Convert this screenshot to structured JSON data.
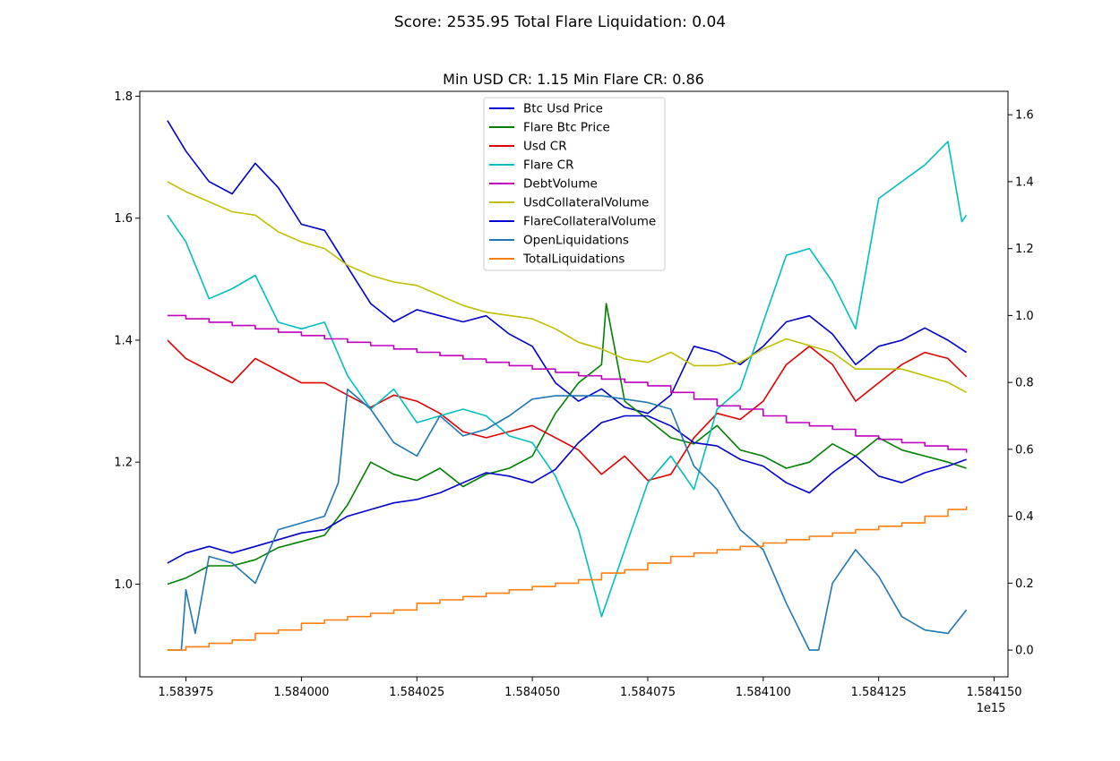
{
  "figure": {
    "suptitle": "Score: 2535.95 Total Flare Liquidation: 0.04",
    "axes_title": "Min USD CR: 1.15 Min Flare CR: 0.86"
  },
  "chart_data": {
    "type": "line",
    "title": "Min USD CR: 1.15 Min Flare CR: 0.86",
    "xlabel": "",
    "ylabel": "",
    "xlim": [
      1583965,
      1584153
    ],
    "x_offset_label": "1e15",
    "x_ticks": [
      1583975,
      1584000,
      1584025,
      1584050,
      1584075,
      1584100,
      1584125,
      1584150
    ],
    "x_tick_labels": [
      "1.583975",
      "1.584000",
      "1.584025",
      "1.584050",
      "1.584075",
      "1.584100",
      "1.584125",
      "1.584150"
    ],
    "ylim_left": [
      0.848,
      1.808
    ],
    "y_ticks_left": [
      1.0,
      1.2,
      1.4,
      1.6,
      1.8
    ],
    "y_tick_labels_left": [
      "1.0",
      "1.2",
      "1.4",
      "1.6",
      "1.8"
    ],
    "ylim_right": [
      -0.08,
      1.67
    ],
    "y_ticks_right": [
      0.0,
      0.2,
      0.4,
      0.6,
      0.8,
      1.0,
      1.2,
      1.4,
      1.6
    ],
    "y_tick_labels_right": [
      "0.0",
      "0.2",
      "0.4",
      "0.6",
      "0.8",
      "1.0",
      "1.2",
      "1.4",
      "1.6"
    ],
    "grid": false,
    "legend_position": "upper center",
    "series": [
      {
        "name": "Btc Usd Price",
        "color": "#0000cc",
        "axis": "left",
        "style": "line",
        "x": [
          1583971,
          1583975,
          1583980,
          1583985,
          1583990,
          1583995,
          1584000,
          1584005,
          1584010,
          1584015,
          1584020,
          1584025,
          1584030,
          1584035,
          1584040,
          1584045,
          1584050,
          1584055,
          1584060,
          1584065,
          1584070,
          1584075,
          1584080,
          1584085,
          1584090,
          1584095,
          1584100,
          1584105,
          1584110,
          1584115,
          1584120,
          1584125,
          1584130,
          1584135,
          1584140,
          1584144
        ],
        "y": [
          1.76,
          1.71,
          1.66,
          1.64,
          1.69,
          1.65,
          1.59,
          1.58,
          1.52,
          1.46,
          1.43,
          1.45,
          1.44,
          1.43,
          1.44,
          1.41,
          1.39,
          1.33,
          1.3,
          1.32,
          1.29,
          1.28,
          1.31,
          1.39,
          1.38,
          1.36,
          1.39,
          1.43,
          1.44,
          1.41,
          1.36,
          1.39,
          1.4,
          1.42,
          1.4,
          1.38
        ]
      },
      {
        "name": "Flare Btc Price",
        "color": "#008000",
        "axis": "left",
        "style": "line",
        "x": [
          1583971,
          1583975,
          1583980,
          1583985,
          1583990,
          1583995,
          1584000,
          1584005,
          1584010,
          1584015,
          1584020,
          1584025,
          1584030,
          1584035,
          1584040,
          1584045,
          1584050,
          1584055,
          1584060,
          1584065,
          1584066,
          1584070,
          1584075,
          1584080,
          1584085,
          1584090,
          1584095,
          1584100,
          1584105,
          1584110,
          1584115,
          1584120,
          1584125,
          1584130,
          1584135,
          1584140,
          1584144
        ],
        "y": [
          1.0,
          1.01,
          1.03,
          1.03,
          1.04,
          1.06,
          1.07,
          1.08,
          1.13,
          1.2,
          1.18,
          1.17,
          1.19,
          1.16,
          1.18,
          1.19,
          1.21,
          1.28,
          1.33,
          1.36,
          1.46,
          1.3,
          1.27,
          1.24,
          1.23,
          1.26,
          1.22,
          1.21,
          1.19,
          1.2,
          1.23,
          1.21,
          1.24,
          1.22,
          1.21,
          1.2,
          1.19
        ]
      },
      {
        "name": "Usd CR",
        "color": "#e00000",
        "axis": "left",
        "style": "line",
        "x": [
          1583971,
          1583975,
          1583980,
          1583985,
          1583990,
          1583995,
          1584000,
          1584005,
          1584010,
          1584015,
          1584020,
          1584025,
          1584030,
          1584035,
          1584040,
          1584045,
          1584050,
          1584055,
          1584060,
          1584065,
          1584070,
          1584075,
          1584080,
          1584085,
          1584090,
          1584095,
          1584100,
          1584105,
          1584110,
          1584115,
          1584120,
          1584125,
          1584130,
          1584135,
          1584140,
          1584144
        ],
        "y": [
          1.4,
          1.37,
          1.35,
          1.33,
          1.37,
          1.35,
          1.33,
          1.33,
          1.31,
          1.29,
          1.31,
          1.3,
          1.28,
          1.25,
          1.24,
          1.25,
          1.26,
          1.24,
          1.22,
          1.18,
          1.21,
          1.17,
          1.18,
          1.24,
          1.28,
          1.27,
          1.3,
          1.36,
          1.39,
          1.36,
          1.3,
          1.33,
          1.36,
          1.38,
          1.37,
          1.34
        ]
      },
      {
        "name": "Flare CR",
        "color": "#00bfbf",
        "axis": "right",
        "style": "line",
        "x": [
          1583971,
          1583975,
          1583980,
          1583985,
          1583990,
          1583995,
          1584000,
          1584005,
          1584010,
          1584015,
          1584020,
          1584025,
          1584030,
          1584035,
          1584040,
          1584045,
          1584050,
          1584055,
          1584060,
          1584065,
          1584070,
          1584075,
          1584080,
          1584085,
          1584090,
          1584095,
          1584100,
          1584105,
          1584110,
          1584115,
          1584120,
          1584125,
          1584130,
          1584135,
          1584140,
          1584143,
          1584144
        ],
        "y": [
          1.3,
          1.22,
          1.05,
          1.08,
          1.12,
          0.98,
          0.96,
          0.98,
          0.82,
          0.72,
          0.78,
          0.68,
          0.7,
          0.72,
          0.7,
          0.64,
          0.62,
          0.52,
          0.36,
          0.1,
          0.3,
          0.5,
          0.58,
          0.48,
          0.72,
          0.78,
          0.98,
          1.18,
          1.2,
          1.1,
          0.96,
          1.35,
          1.4,
          1.45,
          1.52,
          1.28,
          1.3
        ]
      },
      {
        "name": "DebtVolume",
        "color": "#bf00bf",
        "axis": "right",
        "style": "step",
        "x": [
          1583971,
          1583975,
          1583980,
          1583985,
          1583990,
          1583995,
          1584000,
          1584005,
          1584010,
          1584015,
          1584020,
          1584025,
          1584030,
          1584035,
          1584040,
          1584045,
          1584050,
          1584055,
          1584060,
          1584065,
          1584070,
          1584075,
          1584080,
          1584085,
          1584090,
          1584095,
          1584100,
          1584105,
          1584110,
          1584115,
          1584120,
          1584125,
          1584130,
          1584135,
          1584140,
          1584144
        ],
        "y": [
          1.0,
          0.99,
          0.98,
          0.97,
          0.96,
          0.95,
          0.94,
          0.93,
          0.92,
          0.91,
          0.9,
          0.89,
          0.88,
          0.87,
          0.86,
          0.85,
          0.84,
          0.83,
          0.82,
          0.81,
          0.8,
          0.79,
          0.77,
          0.75,
          0.73,
          0.72,
          0.7,
          0.68,
          0.67,
          0.66,
          0.64,
          0.63,
          0.62,
          0.61,
          0.6,
          0.59
        ]
      },
      {
        "name": "UsdCollateralVolume",
        "color": "#bfbf00",
        "axis": "right",
        "style": "line",
        "x": [
          1583971,
          1583975,
          1583980,
          1583985,
          1583990,
          1583995,
          1584000,
          1584005,
          1584010,
          1584015,
          1584020,
          1584025,
          1584030,
          1584035,
          1584040,
          1584045,
          1584050,
          1584055,
          1584060,
          1584065,
          1584070,
          1584075,
          1584080,
          1584085,
          1584090,
          1584095,
          1584100,
          1584105,
          1584110,
          1584115,
          1584120,
          1584125,
          1584130,
          1584135,
          1584140,
          1584144
        ],
        "y": [
          1.4,
          1.37,
          1.34,
          1.31,
          1.3,
          1.25,
          1.22,
          1.2,
          1.15,
          1.12,
          1.1,
          1.09,
          1.06,
          1.03,
          1.01,
          1.0,
          0.99,
          0.96,
          0.92,
          0.9,
          0.87,
          0.86,
          0.89,
          0.85,
          0.85,
          0.86,
          0.9,
          0.93,
          0.91,
          0.89,
          0.84,
          0.84,
          0.84,
          0.82,
          0.8,
          0.77
        ]
      },
      {
        "name": "FlareCollateralVolume",
        "color": "#0000cc",
        "axis": "right",
        "style": "line",
        "x": [
          1583971,
          1583975,
          1583980,
          1583985,
          1583990,
          1583995,
          1584000,
          1584005,
          1584010,
          1584015,
          1584020,
          1584025,
          1584030,
          1584035,
          1584040,
          1584045,
          1584050,
          1584055,
          1584060,
          1584065,
          1584070,
          1584075,
          1584080,
          1584085,
          1584090,
          1584095,
          1584100,
          1584105,
          1584110,
          1584115,
          1584120,
          1584125,
          1584130,
          1584135,
          1584140,
          1584144
        ],
        "y": [
          0.26,
          0.29,
          0.31,
          0.29,
          0.31,
          0.33,
          0.35,
          0.36,
          0.4,
          0.42,
          0.44,
          0.45,
          0.47,
          0.5,
          0.53,
          0.52,
          0.5,
          0.54,
          0.62,
          0.68,
          0.7,
          0.7,
          0.67,
          0.62,
          0.61,
          0.57,
          0.55,
          0.5,
          0.47,
          0.53,
          0.58,
          0.52,
          0.5,
          0.53,
          0.55,
          0.57
        ]
      },
      {
        "name": "OpenLiquidations",
        "color": "#1f77b4",
        "axis": "right",
        "style": "line",
        "x": [
          1583971,
          1583974,
          1583975,
          1583977,
          1583980,
          1583985,
          1583990,
          1583995,
          1584000,
          1584005,
          1584008,
          1584010,
          1584015,
          1584020,
          1584025,
          1584030,
          1584035,
          1584040,
          1584045,
          1584050,
          1584055,
          1584060,
          1584065,
          1584070,
          1584075,
          1584080,
          1584085,
          1584090,
          1584095,
          1584100,
          1584105,
          1584110,
          1584112,
          1584115,
          1584120,
          1584125,
          1584130,
          1584135,
          1584140,
          1584144
        ],
        "y": [
          0.0,
          0.0,
          0.18,
          0.05,
          0.28,
          0.26,
          0.2,
          0.36,
          0.38,
          0.4,
          0.5,
          0.78,
          0.72,
          0.62,
          0.58,
          0.7,
          0.64,
          0.66,
          0.7,
          0.75,
          0.76,
          0.76,
          0.76,
          0.75,
          0.74,
          0.72,
          0.55,
          0.48,
          0.36,
          0.3,
          0.14,
          0.0,
          0.0,
          0.2,
          0.3,
          0.22,
          0.1,
          0.06,
          0.05,
          0.12
        ]
      },
      {
        "name": "TotalLiquidations",
        "color": "#ff7f0e",
        "axis": "right",
        "style": "step",
        "x": [
          1583971,
          1583975,
          1583980,
          1583985,
          1583990,
          1583995,
          1584000,
          1584005,
          1584010,
          1584015,
          1584020,
          1584025,
          1584030,
          1584035,
          1584040,
          1584045,
          1584050,
          1584055,
          1584060,
          1584065,
          1584070,
          1584075,
          1584080,
          1584085,
          1584090,
          1584095,
          1584100,
          1584105,
          1584110,
          1584115,
          1584120,
          1584125,
          1584130,
          1584135,
          1584140,
          1584144
        ],
        "y": [
          0.0,
          0.01,
          0.02,
          0.03,
          0.05,
          0.06,
          0.08,
          0.09,
          0.1,
          0.11,
          0.12,
          0.14,
          0.15,
          0.16,
          0.17,
          0.18,
          0.19,
          0.2,
          0.21,
          0.23,
          0.24,
          0.26,
          0.28,
          0.29,
          0.3,
          0.31,
          0.32,
          0.33,
          0.34,
          0.35,
          0.36,
          0.37,
          0.38,
          0.4,
          0.42,
          0.43
        ]
      }
    ]
  }
}
